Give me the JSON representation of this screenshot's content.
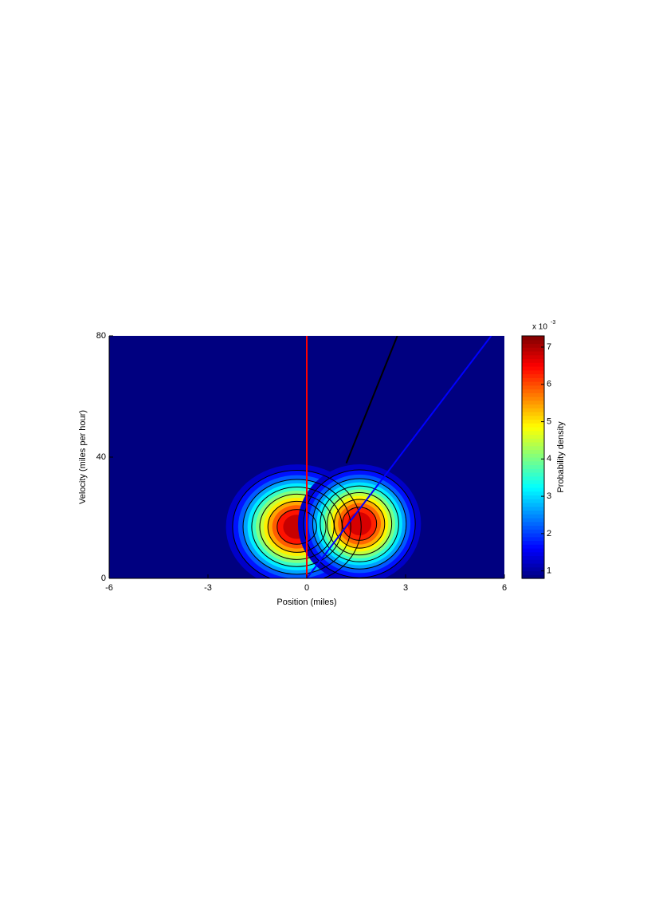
{
  "chart_data": {
    "type": "contour",
    "xlabel": "Position (miles)",
    "ylabel": "Velocity (miles per hour)",
    "xlim": [
      -6,
      6
    ],
    "xticks": [
      -6,
      -3,
      0,
      3,
      6
    ],
    "ylim": [
      0,
      80
    ],
    "yticks": [
      0,
      40,
      80
    ],
    "peaks": {
      "x": [
        -0.3,
        1.6
      ],
      "y": [
        17,
        18
      ],
      "z": [
        7.3,
        7.2
      ]
    },
    "series": [
      {
        "color": "#ff0000",
        "x": [
          0,
          0
        ],
        "y": [
          0,
          80
        ]
      },
      {
        "color": "#000000",
        "x": [
          1.2,
          2.75
        ],
        "y": [
          38,
          80
        ]
      },
      {
        "color": "#0000ff",
        "x": [
          0,
          5.6
        ],
        "y": [
          0,
          80
        ]
      }
    ],
    "colorbar": {
      "label": "Probability density",
      "multiplier": "x 10",
      "exponent": "-3",
      "clim": [
        0.8,
        7.3
      ],
      "ticks": [
        1,
        2,
        3,
        4,
        5,
        6,
        7
      ]
    }
  }
}
